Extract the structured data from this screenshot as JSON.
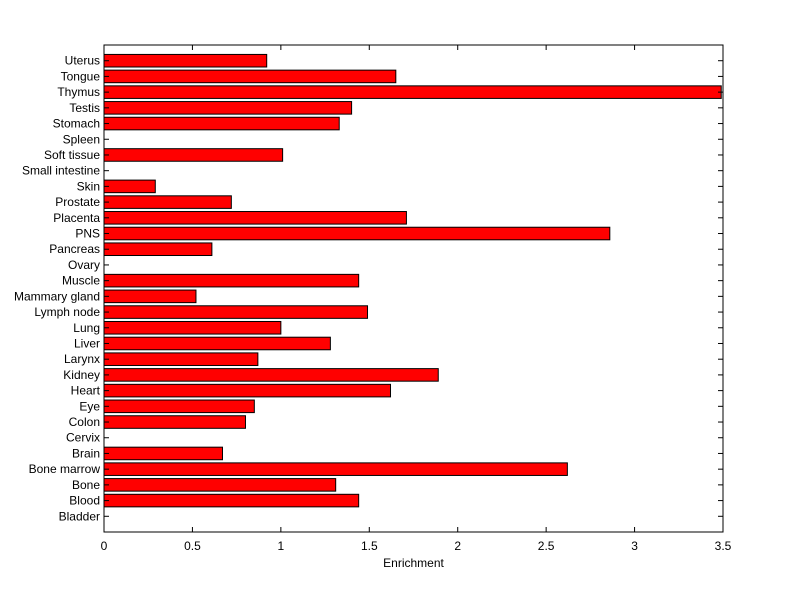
{
  "chart_data": {
    "type": "bar",
    "orientation": "horizontal",
    "categories": [
      "Uterus",
      "Tongue",
      "Thymus",
      "Testis",
      "Stomach",
      "Spleen",
      "Soft tissue",
      "Small intestine",
      "Skin",
      "Prostate",
      "Placenta",
      "PNS",
      "Pancreas",
      "Ovary",
      "Muscle",
      "Mammary gland",
      "Lymph node",
      "Lung",
      "Liver",
      "Larynx",
      "Kidney",
      "Heart",
      "Eye",
      "Colon",
      "Cervix",
      "Brain",
      "Bone marrow",
      "Bone",
      "Blood",
      "Bladder"
    ],
    "values": [
      0.92,
      1.65,
      3.49,
      1.4,
      1.33,
      0,
      1.01,
      0,
      0.29,
      0.72,
      1.71,
      2.86,
      0.61,
      0,
      1.44,
      0.52,
      1.49,
      1.0,
      1.28,
      0.87,
      1.89,
      1.62,
      0.85,
      0.8,
      0,
      0.67,
      2.62,
      1.31,
      1.44,
      0
    ],
    "xlabel": "Enrichment",
    "ylabel": "",
    "title": "",
    "xlim": [
      0,
      3.5
    ],
    "xticks": [
      0,
      0.5,
      1,
      1.5,
      2,
      2.5,
      3,
      3.5
    ],
    "xtick_labels": [
      "0",
      "0.5",
      "1",
      "1.5",
      "2",
      "2.5",
      "3",
      "3.5"
    ],
    "grid": false,
    "legend": "none",
    "bar_color": "#ff0000",
    "edge_color": "#000000"
  }
}
